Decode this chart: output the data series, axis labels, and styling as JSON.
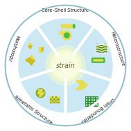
{
  "title": "strain",
  "bg_color": "#ffffff",
  "outer_ring_color": "#ffffff",
  "inner_bg_color": "#cde8f5",
  "center_glow_color": "#f0f8c8",
  "center_text_color": "#666633",
  "divider_color": "#ffffff",
  "outer_r": 0.92,
  "ring_inner_r": 0.74,
  "center_r": 0.2,
  "divider_angles": [
    54,
    126,
    198,
    270,
    342
  ],
  "label_configs": [
    {
      "text": "Core–Shell Structure",
      "mid_deg": 90,
      "r": 0.836,
      "fs": 4.8
    },
    {
      "text": "Heterostructure",
      "mid_deg": 18,
      "r": 0.836,
      "fs": 4.8
    },
    {
      "text": "Grain Boundaries",
      "mid_deg": -54,
      "r": 0.836,
      "fs": 4.8
    },
    {
      "text": "Bimetallic Structure",
      "mid_deg": -126,
      "r": 0.836,
      "fs": 4.8
    },
    {
      "text": "Morphology",
      "mid_deg": -198,
      "r": 0.836,
      "fs": 4.8
    }
  ],
  "yellow_light": "#e8dc50",
  "yellow_mid": "#ccbb22",
  "yellow_dark": "#aa9910",
  "green_bright": "#44bb44",
  "green_mid": "#338833",
  "green_dark": "#226622",
  "teal": "#22aa88",
  "olive": "#88aa22",
  "lime": "#aacc22"
}
